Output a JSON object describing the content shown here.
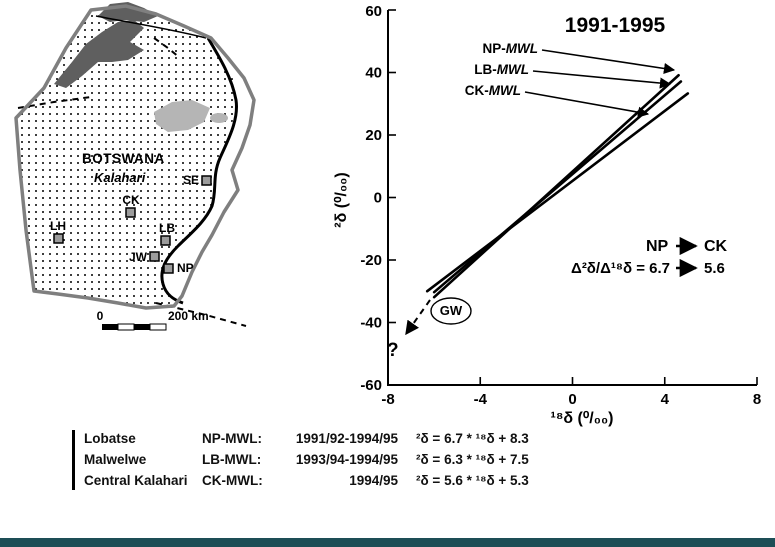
{
  "map": {
    "country_label": "BOTSWANA",
    "region_label": "Kalahari",
    "sites": [
      {
        "code": "LH"
      },
      {
        "code": "CK"
      },
      {
        "code": "SE"
      },
      {
        "code": "LB"
      },
      {
        "code": "JW"
      },
      {
        "code": "NP"
      }
    ],
    "scale_zero": "0",
    "scale_distance": "200 km"
  },
  "chart_data": {
    "type": "line",
    "title": "1991-1995",
    "xlabel": "¹⁸δ (⁰/₀₀)",
    "ylabel": "²δ (⁰/₀₀)",
    "xlim": [
      -8,
      8
    ],
    "ylim": [
      -60,
      60
    ],
    "grid": false,
    "xticks": [
      -8,
      -4,
      0,
      4,
      8
    ],
    "yticks": [
      60,
      40,
      20,
      0,
      -20,
      -40,
      -60
    ],
    "series": [
      {
        "name": "NP-MWL",
        "name_prefix": "NP-",
        "name_mwl": "MWL",
        "slope": 6.7,
        "intercept": 8.3,
        "x_range": [
          -6.0,
          4.6
        ]
      },
      {
        "name": "LB-MWL",
        "name_prefix": "LB-",
        "name_mwl": "MWL",
        "slope": 6.3,
        "intercept": 7.5,
        "x_range": [
          -6.0,
          4.7
        ]
      },
      {
        "name": "CK-MWL",
        "name_prefix": "CK-",
        "name_mwl": "MWL",
        "slope": 5.6,
        "intercept": 5.3,
        "x_range": [
          -6.3,
          5.0
        ]
      }
    ],
    "annotations": {
      "gw": "GW",
      "question": "?",
      "top_from": "NP",
      "top_to": "CK",
      "bottom_label": "Δ²δ/Δ¹⁸δ = ",
      "bottom_from": "6.7",
      "bottom_to": "5.6"
    }
  },
  "legend": {
    "rows": [
      {
        "site": "Lobatse",
        "mwl": "NP-MWL:",
        "period": "1991/92-1994/95",
        "equation": "²δ = 6.7 * ¹⁸δ + 8.3"
      },
      {
        "site": "Malwelwe",
        "mwl": "LB-MWL:",
        "period": "1993/94-1994/95",
        "equation": "²δ = 6.3 * ¹⁸δ + 7.5"
      },
      {
        "site": "Central Kalahari",
        "mwl": "CK-MWL:",
        "period": "1994/95",
        "equation": "²δ = 5.6 * ¹⁸δ + 5.3"
      }
    ]
  },
  "colors": {
    "line": "#000000",
    "map_border": "#7f7f7f",
    "delta_fill": "#5f5f5f",
    "pans_fill": "#b5b5b5",
    "marker_fill": "#9c9c9c",
    "footer_bar": "#1d4e56"
  }
}
